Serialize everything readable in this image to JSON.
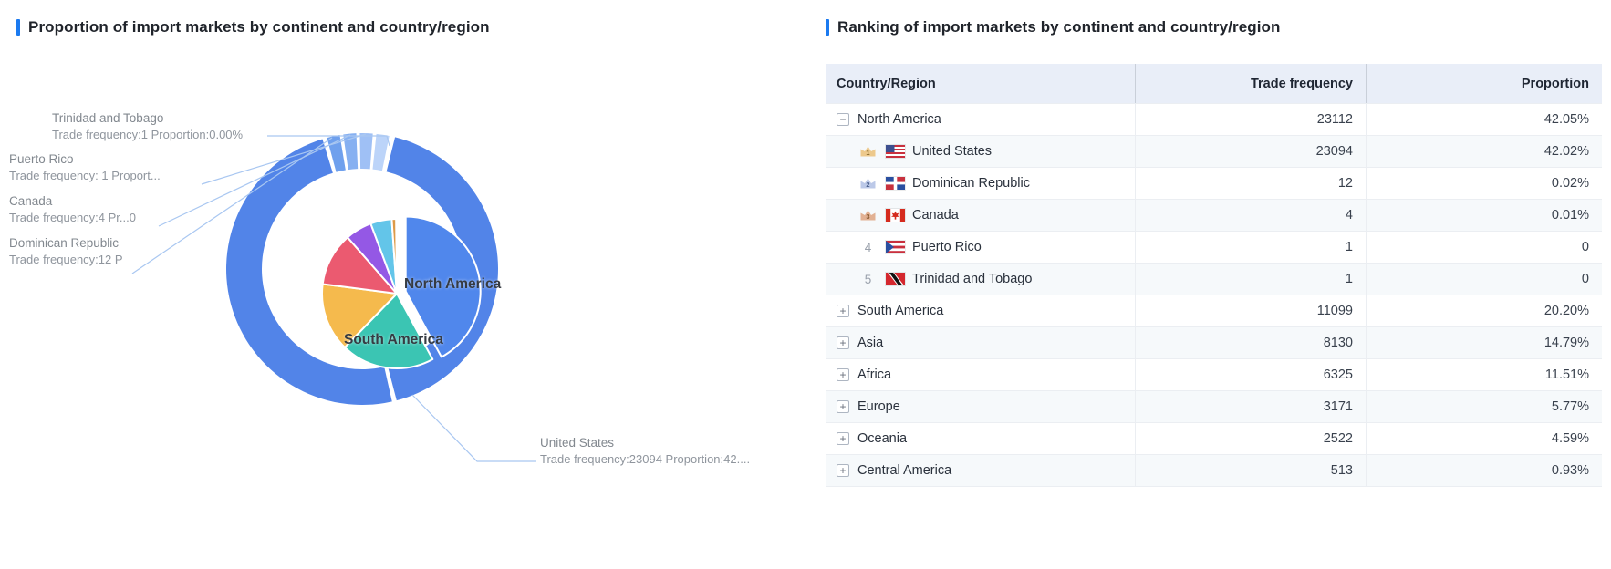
{
  "colors": {
    "accent": "#1B7AF0",
    "ring_main_blue": "#5284E8",
    "leader_line": "#A9C7F1",
    "table_header_bg": "#E9EEF8",
    "row_alt_bg": "#F6F9FB",
    "rank_badges": [
      {
        "bg": "#EDC98C",
        "text": "#7A5C20"
      },
      {
        "bg": "#BCC9E8",
        "text": "#4A5F8C"
      },
      {
        "bg": "#E2B193",
        "text": "#8A5A30"
      }
    ]
  },
  "left_panel": {
    "title": "Proportion of import markets by continent and country/region",
    "chart_data": {
      "type": "pie",
      "subtype": "two-level donut (continents inner, countries outer)",
      "legend_position": "none",
      "inner_ring": {
        "name": "continents",
        "slices": [
          {
            "name": "North America",
            "proportion": 42.05,
            "color": "#5087EC",
            "selected": true
          },
          {
            "name": "South America",
            "proportion": 20.2,
            "color": "#3BC5B3"
          },
          {
            "name": "Asia",
            "proportion": 14.79,
            "color": "#F5BA4D"
          },
          {
            "name": "Africa",
            "proportion": 11.51,
            "color": "#EB5A70"
          },
          {
            "name": "Europe",
            "proportion": 5.77,
            "color": "#9458E5"
          },
          {
            "name": "Oceania",
            "proportion": 4.59,
            "color": "#63C5E9"
          },
          {
            "name": "Central America",
            "proportion": 0.93,
            "color": "#DD9A48"
          }
        ],
        "visible_slice_labels": [
          "North America",
          "South America"
        ]
      },
      "outer_ring": {
        "name": "countries",
        "slices": [
          {
            "name": "United States",
            "trade_frequency": 23094,
            "proportion": 42.02,
            "color": "#5284E8"
          },
          {
            "name": "other countries (aggregated, unlabeled)",
            "color": "#5284E8"
          },
          {
            "name": "Dominican Republic",
            "trade_frequency": 12,
            "proportion": 0.02,
            "color": "#6FA0ED"
          },
          {
            "name": "Canada",
            "trade_frequency": 4,
            "proportion": 0.01,
            "color": "#86B0F1"
          },
          {
            "name": "Puerto Rico",
            "trade_frequency": 1,
            "proportion": 0,
            "color": "#9FC0F5"
          },
          {
            "name": "Trinidad and Tobago",
            "trade_frequency": 1,
            "proportion": 0,
            "color": "#BCD4F9"
          }
        ]
      },
      "callouts": [
        {
          "name": "Trinidad and Tobago",
          "detail": "Trade frequency:1 Proportion:0.00%"
        },
        {
          "name": "Puerto Rico",
          "detail": "Trade frequency: 1 Proport..."
        },
        {
          "name": "Canada",
          "detail": "Trade frequency:4 Pr...0"
        },
        {
          "name": "Dominican Republic",
          "detail": "Trade frequency:12 P"
        },
        {
          "name": "United States",
          "detail": "Trade frequency:23094 Proportion:42...."
        }
      ],
      "pie_labels": [
        "North America",
        "South America"
      ]
    }
  },
  "right_panel": {
    "title": "Ranking of import markets by continent and country/region",
    "table": {
      "columns": [
        "Country/Region",
        "Trade frequency",
        "Proportion"
      ],
      "rows": [
        {
          "type": "continent",
          "expanded": true,
          "name": "North America",
          "trade_frequency": "23112",
          "proportion": "42.05%"
        },
        {
          "type": "country",
          "rank": 1,
          "flag": "us",
          "name": "United States",
          "trade_frequency": "23094",
          "proportion": "42.02%"
        },
        {
          "type": "country",
          "rank": 2,
          "flag": "do",
          "name": "Dominican Republic",
          "trade_frequency": "12",
          "proportion": "0.02%"
        },
        {
          "type": "country",
          "rank": 3,
          "flag": "ca",
          "name": "Canada",
          "trade_frequency": "4",
          "proportion": "0.01%"
        },
        {
          "type": "country",
          "rank": 4,
          "flag": "pr",
          "name": "Puerto Rico",
          "trade_frequency": "1",
          "proportion": "0"
        },
        {
          "type": "country",
          "rank": 5,
          "flag": "tt",
          "name": "Trinidad and Tobago",
          "trade_frequency": "1",
          "proportion": "0"
        },
        {
          "type": "continent",
          "expanded": false,
          "name": "South America",
          "trade_frequency": "11099",
          "proportion": "20.20%"
        },
        {
          "type": "continent",
          "expanded": false,
          "name": "Asia",
          "trade_frequency": "8130",
          "proportion": "14.79%"
        },
        {
          "type": "continent",
          "expanded": false,
          "name": "Africa",
          "trade_frequency": "6325",
          "proportion": "11.51%"
        },
        {
          "type": "continent",
          "expanded": false,
          "name": "Europe",
          "trade_frequency": "3171",
          "proportion": "5.77%"
        },
        {
          "type": "continent",
          "expanded": false,
          "name": "Oceania",
          "trade_frequency": "2522",
          "proportion": "4.59%"
        },
        {
          "type": "continent",
          "expanded": false,
          "name": "Central America",
          "trade_frequency": "513",
          "proportion": "0.93%"
        }
      ]
    }
  }
}
